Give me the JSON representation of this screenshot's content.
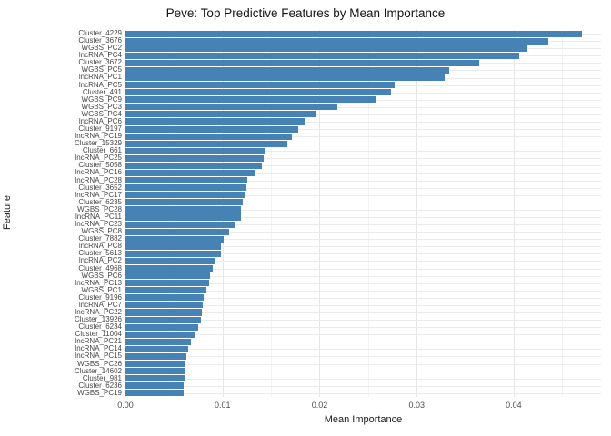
{
  "accent_color": "#4682B4",
  "grid_major_color": "#e6e6e6",
  "grid_minor_color": "#f3f3f3",
  "chart_data": {
    "type": "bar",
    "orientation": "horizontal",
    "title": "Peve: Top Predictive Features by Mean Importance",
    "xlabel": "Mean Importance",
    "ylabel": "Feature",
    "xlim": [
      0,
      0.049
    ],
    "x_tick_values": [
      0,
      0.01,
      0.02,
      0.03,
      0.04
    ],
    "x_tick_labels": [
      "0.00",
      "0.01",
      "0.02",
      "0.03",
      "0.04"
    ],
    "x_minor_values": [
      0.005,
      0.015,
      0.025,
      0.035,
      0.045
    ],
    "grid": "on",
    "legend": "none",
    "bar_color": "#4682B4",
    "categories": [
      "Cluster_4229",
      "Cluster_3676",
      "WGBS_PC2",
      "lncRNA_PC4",
      "Cluster_3672",
      "WGBS_PC5",
      "lncRNA_PC1",
      "lncRNA_PC5",
      "Cluster_491",
      "WGBS_PC9",
      "WGBS_PC3",
      "WGBS_PC4",
      "lncRNA_PC6",
      "Cluster_9197",
      "lncRNA_PC19",
      "Cluster_15329",
      "Cluster_661",
      "lncRNA_PC25",
      "Cluster_5058",
      "lncRNA_PC16",
      "lncRNA_PC28",
      "Cluster_3652",
      "lncRNA_PC17",
      "Cluster_6235",
      "WGBS_PC28",
      "lncRNA_PC11",
      "lncRNA_PC23",
      "WGBS_PC8",
      "Cluster_7882",
      "lncRNA_PC8",
      "Cluster_5613",
      "lncRNA_PC2",
      "Cluster_4968",
      "WGBS_PC6",
      "lncRNA_PC13",
      "WGBS_PC1",
      "Cluster_9196",
      "lncRNA_PC7",
      "lncRNA_PC22",
      "Cluster_13926",
      "Cluster_6234",
      "Cluster_11004",
      "lncRNA_PC21",
      "lncRNA_PC14",
      "lncRNA_PC15",
      "WGBS_PC26",
      "Cluster_14602",
      "Cluster_981",
      "Cluster_6236",
      "WGBS_PC19"
    ],
    "values": [
      0.047,
      0.0436,
      0.0414,
      0.0406,
      0.0364,
      0.0334,
      0.0329,
      0.0277,
      0.0274,
      0.0259,
      0.0218,
      0.0196,
      0.0185,
      0.0178,
      0.0171,
      0.0167,
      0.0144,
      0.0142,
      0.0141,
      0.0133,
      0.0126,
      0.0125,
      0.0124,
      0.0121,
      0.0119,
      0.0119,
      0.0113,
      0.0107,
      0.0101,
      0.0098,
      0.0098,
      0.0092,
      0.009,
      0.0087,
      0.0086,
      0.0083,
      0.0081,
      0.008,
      0.0079,
      0.0078,
      0.0075,
      0.0071,
      0.0067,
      0.0065,
      0.0063,
      0.0062,
      0.0061,
      0.0061,
      0.006,
      0.006
    ]
  }
}
